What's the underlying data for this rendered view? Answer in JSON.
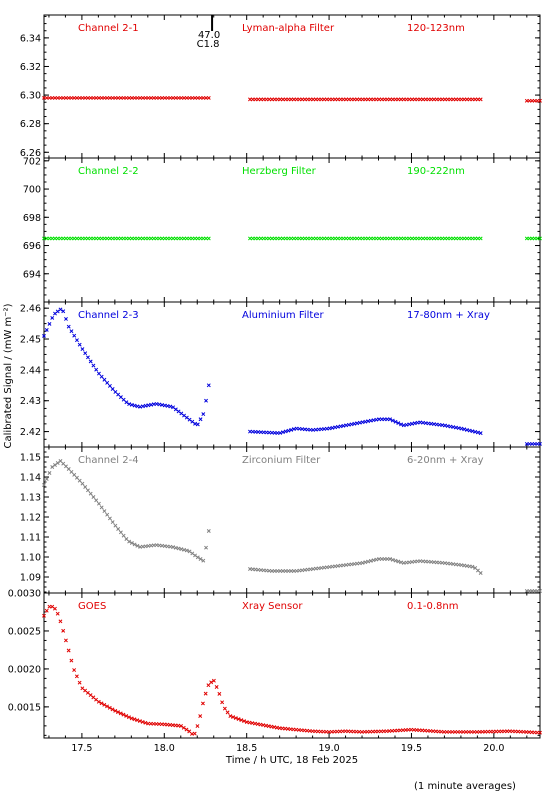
{
  "xaxis": {
    "label": "Time / h UTC, 18 Feb 2025",
    "ticks": [
      17.5,
      18.0,
      18.5,
      19.0,
      19.5,
      20.0
    ],
    "tick_labels": [
      "17.5",
      "18.0",
      "18.5",
      "19.0",
      "19.5",
      "20.0"
    ],
    "range": [
      17.27,
      20.28
    ]
  },
  "ylabel": "Calibrated Signal / (mW m⁻²)",
  "flare_marker": {
    "time": 18.29,
    "top_label": "47.0",
    "bottom_label": "C1.8"
  },
  "footer": "(1 minute averages)",
  "colors": {
    "red": "#e00000",
    "green": "#00e000",
    "blue": "#0000dd",
    "grey": "#808080"
  },
  "chart_data": [
    {
      "type": "scatter",
      "channel": "Channel 2-1",
      "filter": "Lyman-alpha Filter",
      "band": "120-123nm",
      "color": "#e00000",
      "ylim": [
        6.256,
        6.356
      ],
      "yticks": [
        6.26,
        6.28,
        6.3,
        6.32,
        6.34
      ],
      "ytick_labels": [
        "6.26",
        "6.28",
        "6.30",
        "6.32",
        "6.34"
      ],
      "x": [
        17.27,
        18.27,
        18.52,
        19.92,
        20.2,
        20.28
      ],
      "y": [
        6.298,
        6.298,
        6.297,
        6.297,
        6.296,
        6.296
      ],
      "segments": [
        [
          0,
          1
        ],
        [
          2,
          3
        ],
        [
          4,
          5
        ]
      ]
    },
    {
      "type": "scatter",
      "channel": "Channel 2-2",
      "filter": "Herzberg Filter",
      "band": "190-222nm",
      "color": "#00e000",
      "ylim": [
        692.0,
        702.2
      ],
      "yticks": [
        694,
        696,
        698,
        700,
        702
      ],
      "ytick_labels": [
        "694",
        "696",
        "698",
        "700",
        "702"
      ],
      "x": [
        17.27,
        18.27,
        18.52,
        19.92,
        20.2,
        20.28
      ],
      "y": [
        696.5,
        696.5,
        696.5,
        696.5,
        696.5,
        696.5
      ],
      "segments": [
        [
          0,
          1
        ],
        [
          2,
          3
        ],
        [
          4,
          5
        ]
      ]
    },
    {
      "type": "scatter",
      "channel": "Channel 2-3",
      "filter": "Aluminium Filter",
      "band": "17-80nm + Xray",
      "color": "#0000dd",
      "ylim": [
        2.415,
        2.462
      ],
      "yticks": [
        2.42,
        2.43,
        2.44,
        2.45,
        2.46
      ],
      "ytick_labels": [
        "2.42",
        "2.43",
        "2.44",
        "2.45",
        "2.46"
      ],
      "x": [
        17.27,
        17.33,
        17.38,
        17.42,
        17.5,
        17.6,
        17.7,
        17.78,
        17.85,
        17.95,
        18.05,
        18.15,
        18.2,
        18.24,
        18.27,
        18.27,
        18.52,
        18.7,
        18.8,
        18.9,
        19.0,
        19.1,
        19.2,
        19.3,
        19.37,
        19.45,
        19.55,
        19.7,
        19.8,
        19.92,
        20.2,
        20.28
      ],
      "y": [
        2.451,
        2.458,
        2.46,
        2.454,
        2.447,
        2.439,
        2.433,
        2.429,
        2.428,
        2.429,
        2.428,
        2.424,
        2.422,
        2.426,
        2.435,
        2.435,
        2.42,
        2.4195,
        2.421,
        2.4205,
        2.421,
        2.422,
        2.423,
        2.424,
        2.424,
        2.422,
        2.423,
        2.422,
        2.421,
        2.4195,
        2.416,
        2.416
      ],
      "segments": [
        [
          0,
          15
        ],
        [
          16,
          29
        ],
        [
          30,
          31
        ]
      ]
    },
    {
      "type": "scatter",
      "channel": "Channel 2-4",
      "filter": "Zirconium Filter",
      "band": "6-20nm + Xray",
      "color": "#808080",
      "ylim": [
        1.082,
        1.155
      ],
      "yticks": [
        1.09,
        1.1,
        1.11,
        1.12,
        1.13,
        1.14,
        1.15
      ],
      "ytick_labels": [
        "1.09",
        "1.10",
        "1.11",
        "1.12",
        "1.13",
        "1.14",
        "1.15"
      ],
      "x": [
        17.27,
        17.32,
        17.37,
        17.42,
        17.5,
        17.6,
        17.7,
        17.78,
        17.85,
        17.95,
        18.05,
        18.15,
        18.2,
        18.24,
        18.27,
        18.27,
        18.52,
        18.65,
        18.8,
        18.9,
        19.0,
        19.1,
        19.2,
        19.3,
        19.37,
        19.45,
        19.55,
        19.7,
        19.8,
        19.88,
        19.92,
        20.2,
        20.28
      ],
      "y": [
        1.136,
        1.145,
        1.148,
        1.144,
        1.137,
        1.127,
        1.116,
        1.108,
        1.105,
        1.106,
        1.105,
        1.103,
        1.1,
        1.098,
        1.113,
        1.113,
        1.094,
        1.093,
        1.093,
        1.094,
        1.095,
        1.096,
        1.097,
        1.099,
        1.099,
        1.097,
        1.098,
        1.097,
        1.096,
        1.095,
        1.092,
        1.083,
        1.083
      ],
      "segments": [
        [
          0,
          15
        ],
        [
          16,
          30
        ],
        [
          31,
          32
        ]
      ]
    },
    {
      "type": "scatter",
      "channel": "GOES",
      "filter": "Xray Sensor",
      "band": "0.1-0.8nm",
      "color": "#e00000",
      "ylim": [
        0.00109,
        0.003
      ],
      "yticks": [
        0.0015,
        0.002,
        0.0025,
        0.003
      ],
      "ytick_labels": [
        "0.0015",
        "0.0020",
        "0.0025",
        "0.0030"
      ],
      "x": [
        17.27,
        17.3,
        17.33,
        17.36,
        17.4,
        17.45,
        17.5,
        17.6,
        17.7,
        17.8,
        17.9,
        18.0,
        18.1,
        18.15,
        18.18,
        18.21,
        18.24,
        18.27,
        18.3,
        18.33,
        18.36,
        18.4,
        18.5,
        18.7,
        18.9,
        19.0,
        19.1,
        19.2,
        19.35,
        19.5,
        19.7,
        19.9,
        20.1,
        20.28
      ],
      "y": [
        0.0027,
        0.00282,
        0.00282,
        0.0027,
        0.0024,
        0.002,
        0.00175,
        0.00157,
        0.00145,
        0.00135,
        0.00128,
        0.00127,
        0.00125,
        0.00118,
        0.00112,
        0.0013,
        0.0016,
        0.0018,
        0.00185,
        0.0017,
        0.0015,
        0.00138,
        0.0013,
        0.00122,
        0.00118,
        0.00117,
        0.00118,
        0.00117,
        0.00118,
        0.0012,
        0.00117,
        0.00117,
        0.00118,
        0.00116
      ],
      "segments": [
        [
          0,
          33
        ]
      ]
    }
  ]
}
